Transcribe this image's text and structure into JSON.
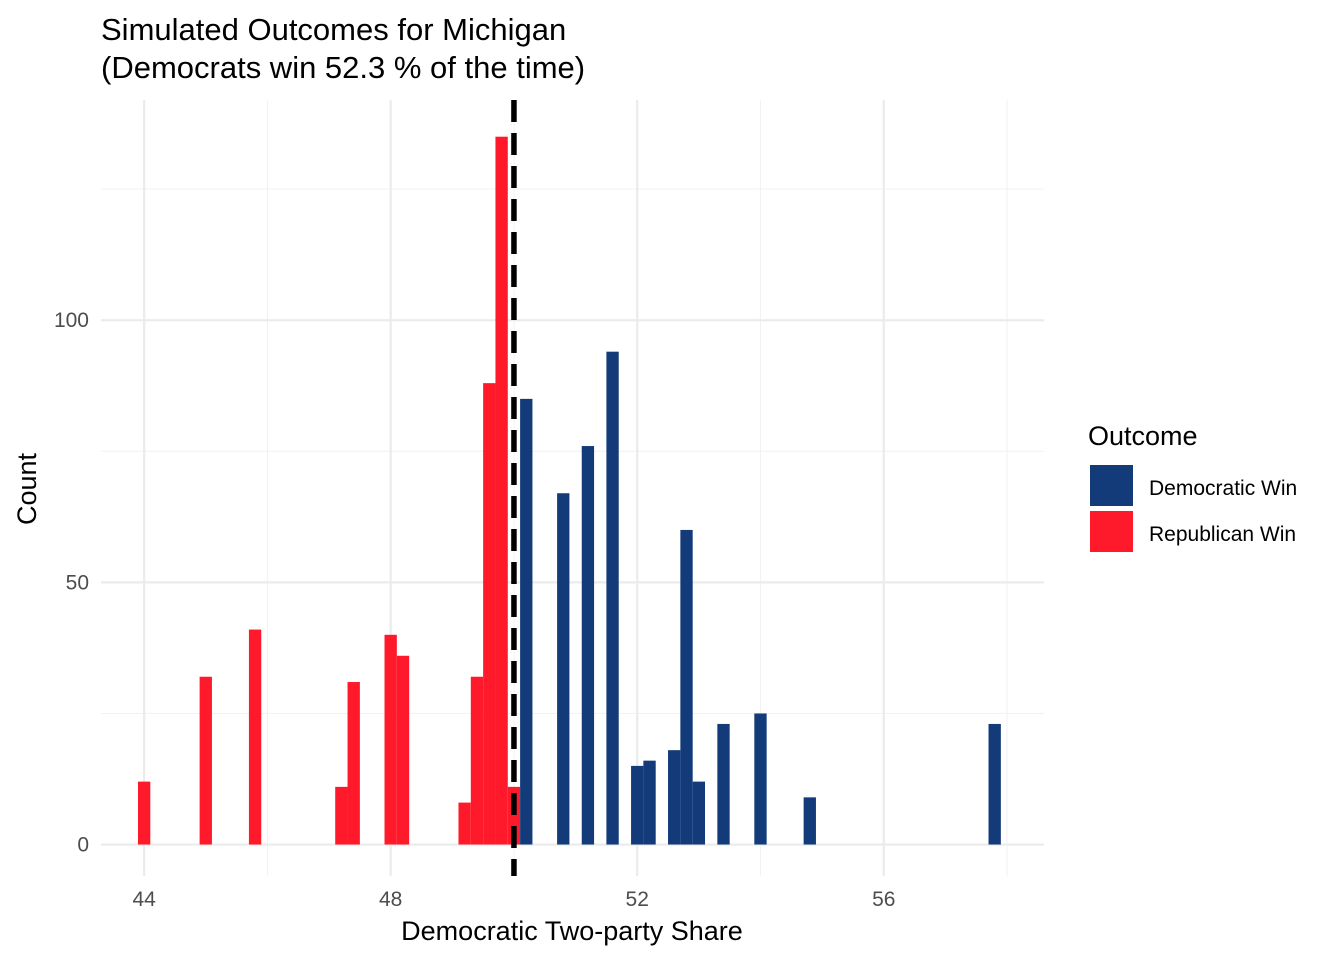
{
  "chart_data": {
    "type": "bar",
    "title_line1": "Simulated Outcomes for Michigan",
    "title_line2": "(Democrats win 52.3 % of the time)",
    "xlabel": "Democratic Two-party Share",
    "ylabel": "Count",
    "xlim": [
      43.3,
      58.6
    ],
    "ylim": [
      -6,
      142
    ],
    "x_ticks": [
      44,
      48,
      52,
      56
    ],
    "y_ticks": [
      0,
      50,
      100
    ],
    "bin_width": 0.2,
    "reference_line_x": 50,
    "grid": true,
    "legend": {
      "title": "Outcome",
      "position": "right",
      "items": [
        {
          "label": "Democratic Win",
          "color": "#133B7A"
        },
        {
          "label": "Republican Win",
          "color": "#FE1A2A"
        }
      ]
    },
    "series": [
      {
        "name": "Republican Win",
        "color": "#FE1A2A",
        "bins": [
          {
            "x": 44.0,
            "count": 12
          },
          {
            "x": 45.0,
            "count": 32
          },
          {
            "x": 45.8,
            "count": 41
          },
          {
            "x": 47.2,
            "count": 11
          },
          {
            "x": 47.4,
            "count": 31
          },
          {
            "x": 48.0,
            "count": 40
          },
          {
            "x": 48.2,
            "count": 36
          },
          {
            "x": 49.2,
            "count": 8
          },
          {
            "x": 49.4,
            "count": 32
          },
          {
            "x": 49.6,
            "count": 88
          },
          {
            "x": 49.8,
            "count": 135
          },
          {
            "x": 50.0,
            "count": 11
          }
        ]
      },
      {
        "name": "Democratic Win",
        "color": "#133B7A",
        "bins": [
          {
            "x": 50.2,
            "count": 85
          },
          {
            "x": 50.8,
            "count": 67
          },
          {
            "x": 51.2,
            "count": 76
          },
          {
            "x": 51.6,
            "count": 94
          },
          {
            "x": 52.0,
            "count": 15
          },
          {
            "x": 52.2,
            "count": 16
          },
          {
            "x": 52.6,
            "count": 18
          },
          {
            "x": 52.8,
            "count": 60
          },
          {
            "x": 53.0,
            "count": 12
          },
          {
            "x": 53.4,
            "count": 23
          },
          {
            "x": 54.0,
            "count": 25
          },
          {
            "x": 54.8,
            "count": 9
          },
          {
            "x": 57.8,
            "count": 23
          }
        ]
      }
    ]
  }
}
